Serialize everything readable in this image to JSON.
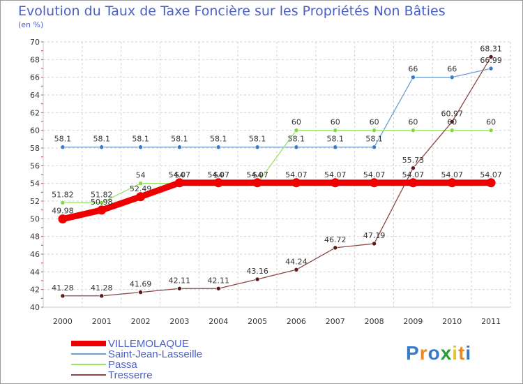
{
  "chart_data": {
    "type": "line",
    "title": "Evolution du Taux de Taxe Foncière sur les Propriétés Non Bâties",
    "ylabel": "(en %)",
    "xlabel": "",
    "categories": [
      "2000",
      "2001",
      "2002",
      "2003",
      "2004",
      "2005",
      "2006",
      "2007",
      "2008",
      "2009",
      "2010",
      "2011"
    ],
    "ylim": [
      40,
      70
    ],
    "yticks": [
      40,
      42,
      44,
      46,
      48,
      50,
      52,
      54,
      56,
      58,
      60,
      62,
      64,
      66,
      68,
      70
    ],
    "grid": true,
    "legend_position": "bottom-left",
    "series": [
      {
        "name": "Saint-Jean-Lasseille",
        "color": "#6b9fcf",
        "point_color": "#3a78c0",
        "values": [
          58.1,
          58.1,
          58.1,
          58.1,
          58.1,
          58.1,
          58.1,
          58.1,
          58.1,
          66,
          66,
          66.99
        ],
        "labels": [
          "58.1",
          "58.1",
          "58.1",
          "58.1",
          "58.1",
          "58.1",
          "58.1",
          "58.1",
          "58.1",
          "66",
          "66",
          "66.99"
        ]
      },
      {
        "name": "Passa",
        "color": "#99e066",
        "point_color": "#8ad44a",
        "values": [
          51.82,
          51.82,
          54,
          54,
          54,
          54,
          60,
          60,
          60,
          60,
          60,
          60
        ],
        "labels": [
          "51.82",
          "51.82",
          "54",
          "54",
          "54",
          "54",
          "60",
          "60",
          "60",
          "60",
          "60",
          "60"
        ]
      },
      {
        "name": "Tresserre",
        "color": "#8a4646",
        "point_color": "#5a1a1a",
        "values": [
          41.28,
          41.28,
          41.69,
          42.11,
          42.11,
          43.16,
          44.24,
          46.72,
          47.19,
          55.73,
          60.97,
          68.31
        ],
        "labels": [
          "41.28",
          "41.28",
          "41.69",
          "42.11",
          "42.11",
          "43.16",
          "44.24",
          "46.72",
          "47.19",
          "55.73",
          "60.97",
          "68.31"
        ]
      },
      {
        "name": "VILLEMOLAQUE",
        "color": "#ee0000",
        "point_color": "#ee0000",
        "values": [
          49.98,
          50.98,
          52.49,
          54.07,
          54.07,
          54.07,
          54.07,
          54.07,
          54.07,
          54.07,
          54.07,
          54.07
        ],
        "labels": [
          "49.98",
          "50.98",
          "52.49",
          "54.07",
          "54.07",
          "54.07",
          "54.07",
          "54.07",
          "54.07",
          "54.07",
          "54.07",
          "54.07"
        ]
      }
    ],
    "legend_order": [
      "VILLEMOLAQUE",
      "Saint-Jean-Lasseille",
      "Passa",
      "Tresserre"
    ]
  },
  "brand": {
    "letters": [
      {
        "ch": "P",
        "color": "#3a78c8"
      },
      {
        "ch": "r",
        "color": "#e8892a"
      },
      {
        "ch": "o",
        "color": "#3a78c8"
      },
      {
        "ch": "x",
        "color": "#2a9a3a"
      },
      {
        "ch": "i",
        "color": "#e8c22a"
      },
      {
        "ch": "t",
        "color": "#e8892a"
      },
      {
        "ch": "i",
        "color": "#3a78c8"
      }
    ]
  }
}
